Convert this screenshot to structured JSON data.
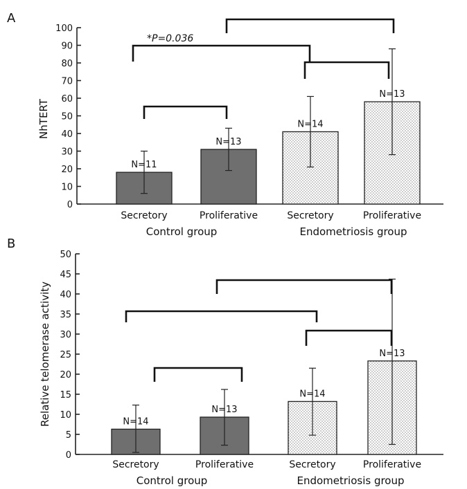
{
  "chart_data": [
    {
      "type": "bar",
      "panel": "A",
      "ylabel": "NhTERT",
      "ylim": [
        0,
        100
      ],
      "yticks": [
        0,
        10,
        20,
        30,
        40,
        50,
        60,
        70,
        80,
        90,
        100
      ],
      "categories": [
        "Secretory",
        "Proliferative",
        "Secretory",
        "Proliferative"
      ],
      "groups": [
        "Control group",
        "Endometriosis group"
      ],
      "values": [
        18,
        31,
        41,
        58
      ],
      "error_low": [
        6,
        19,
        21,
        28
      ],
      "error_high": [
        30,
        43,
        61,
        88
      ],
      "n_labels": [
        "N=11",
        "N=13",
        "N=14",
        "N=13"
      ],
      "fills": [
        "#6f6f6f",
        "#6f6f6f",
        "dots",
        "dots"
      ],
      "annotation": "*P=0.036"
    },
    {
      "type": "bar",
      "panel": "B",
      "ylabel": "Relative telomerase activity",
      "ylim": [
        0,
        50
      ],
      "yticks": [
        0,
        5,
        10,
        15,
        20,
        25,
        30,
        35,
        40,
        45,
        50
      ],
      "categories": [
        "Secretory",
        "Proliferative",
        "Secretory",
        "Proliferative"
      ],
      "groups": [
        "Control group",
        "Endometriosis group"
      ],
      "values": [
        6.3,
        9.3,
        13.2,
        23.3
      ],
      "error_low": [
        0.5,
        2.3,
        4.8,
        2.5
      ],
      "error_high": [
        12.3,
        16.2,
        21.5,
        43.7
      ],
      "n_labels": [
        "N=14",
        "N=13",
        "N=14",
        "N=13"
      ],
      "fills": [
        "#6f6f6f",
        "#6f6f6f",
        "dots",
        "dots"
      ]
    }
  ]
}
